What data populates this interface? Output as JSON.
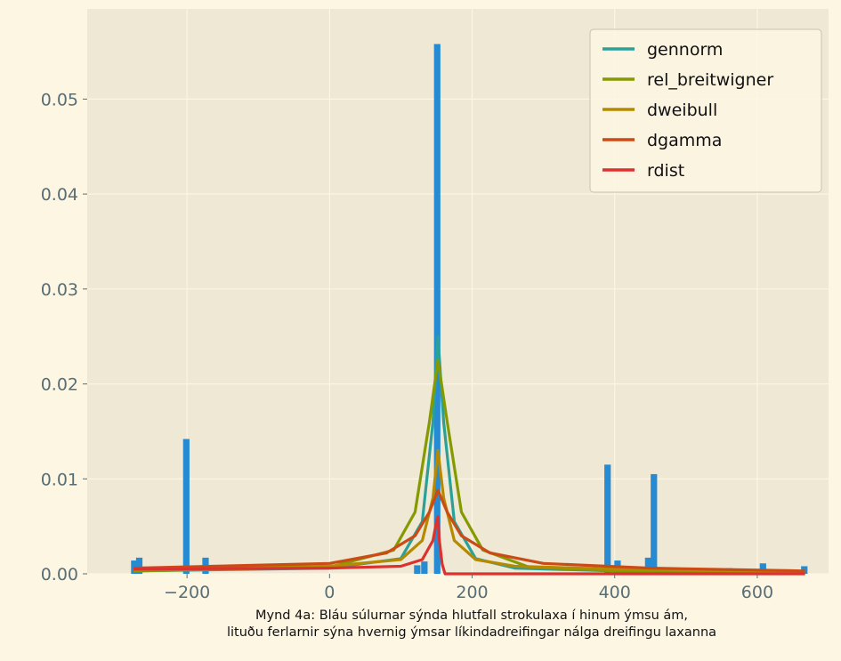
{
  "chart_data": {
    "type": "bar",
    "title": "",
    "xlabel": "",
    "ylabel": "",
    "xlim": [
      -340,
      700
    ],
    "ylim": [
      0,
      0.0595
    ],
    "grid": true,
    "legend_placement": "top-right",
    "colors": {
      "background": "#eee8d5",
      "page": "#fdf6e3",
      "grid": "#fdf6e3",
      "tick_text": "#586e75",
      "bars": "#268bd2"
    },
    "x_ticks": [
      {
        "value": -200,
        "label": "−200"
      },
      {
        "value": 0,
        "label": "0"
      },
      {
        "value": 200,
        "label": "200"
      },
      {
        "value": 400,
        "label": "400"
      },
      {
        "value": 600,
        "label": "600"
      }
    ],
    "y_ticks": [
      {
        "value": 0.0,
        "label": "0.00"
      },
      {
        "value": 0.01,
        "label": "0.01"
      },
      {
        "value": 0.02,
        "label": "0.02"
      },
      {
        "value": 0.03,
        "label": "0.03"
      },
      {
        "value": 0.04,
        "label": "0.04"
      },
      {
        "value": 0.05,
        "label": "0.05"
      }
    ],
    "histogram": {
      "bin_width": 9,
      "bins": [
        {
          "x": -274,
          "y": 0.0014
        },
        {
          "x": -267,
          "y": 0.0017
        },
        {
          "x": -201,
          "y": 0.0142
        },
        {
          "x": -174,
          "y": 0.0017
        },
        {
          "x": 123,
          "y": 0.0009
        },
        {
          "x": 133,
          "y": 0.0013
        },
        {
          "x": 151,
          "y": 0.0558
        },
        {
          "x": 390,
          "y": 0.0115
        },
        {
          "x": 404,
          "y": 0.0014
        },
        {
          "x": 447,
          "y": 0.0017
        },
        {
          "x": 455,
          "y": 0.0105
        },
        {
          "x": 561,
          "y": 0.0006
        },
        {
          "x": 608,
          "y": 0.0011
        },
        {
          "x": 666,
          "y": 0.0008
        }
      ]
    },
    "series": [
      {
        "name": "gennorm",
        "color": "#2aa198",
        "peak_x": 152,
        "x": [
          -275,
          0,
          100,
          130,
          145,
          152,
          160,
          175,
          205,
          260,
          400,
          667
        ],
        "y": [
          0.0003,
          0.0006,
          0.0016,
          0.0055,
          0.016,
          0.025,
          0.016,
          0.0055,
          0.0016,
          0.0006,
          0.0003,
          0.0001
        ]
      },
      {
        "name": "rel_breitwigner",
        "color": "#859900",
        "peak_x": 152,
        "x": [
          -275,
          0,
          90,
          120,
          140,
          152,
          165,
          185,
          215,
          280,
          400,
          667
        ],
        "y": [
          0.0003,
          0.0007,
          0.0025,
          0.0065,
          0.016,
          0.0225,
          0.016,
          0.0065,
          0.0025,
          0.0007,
          0.0003,
          0.0001
        ]
      },
      {
        "name": "dweibull",
        "color": "#b58900",
        "peak_x": 152,
        "x": [
          -275,
          0,
          100,
          130,
          145,
          152,
          160,
          175,
          205,
          260,
          400,
          667
        ],
        "y": [
          0.0005,
          0.0008,
          0.0015,
          0.0035,
          0.008,
          0.013,
          0.008,
          0.0035,
          0.0015,
          0.0008,
          0.0005,
          0.0002
        ]
      },
      {
        "name": "dgamma",
        "color": "#cb4b16",
        "peak_x": 152,
        "x": [
          -275,
          0,
          80,
          120,
          140,
          152,
          165,
          185,
          225,
          300,
          450,
          667
        ],
        "y": [
          0.0006,
          0.0011,
          0.0022,
          0.004,
          0.0065,
          0.0088,
          0.0065,
          0.004,
          0.0022,
          0.0011,
          0.0006,
          0.0003
        ]
      },
      {
        "name": "rdist",
        "color": "#dc322f",
        "peak_x": 152,
        "x": [
          -275,
          0,
          100,
          130,
          145,
          150,
          152,
          154,
          158,
          162,
          400,
          667
        ],
        "y": [
          0.0005,
          0.0006,
          0.0008,
          0.0015,
          0.0035,
          0.0055,
          0.006,
          0.0035,
          0.001,
          0.0,
          0.0,
          0.0
        ]
      }
    ]
  },
  "caption": {
    "line1": "Mynd 4a: Bláu súlurnar sýnda hlutfall strokulaxa í hinum ýmsu ám,",
    "line2": "lituðu ferlarnir sýna hvernig ýmsar líkindadreifingar nálga dreifingu laxanna"
  }
}
